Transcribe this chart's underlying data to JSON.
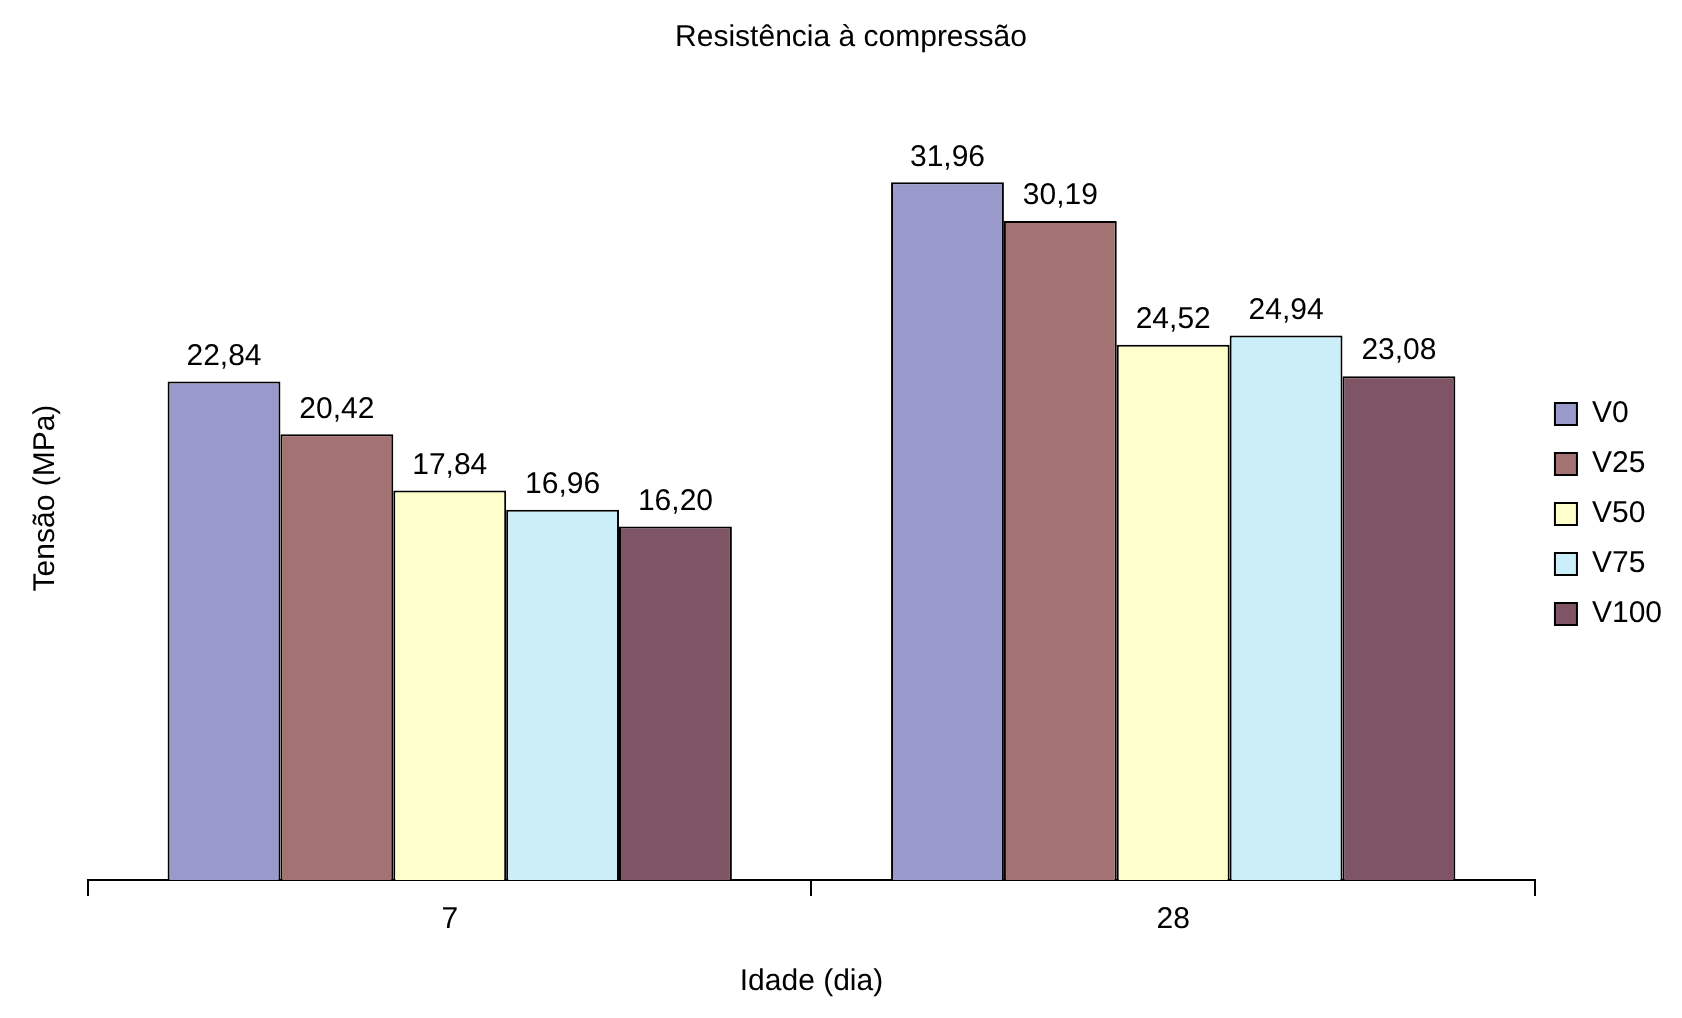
{
  "chart_data": {
    "type": "bar",
    "title": "Resistência à compressão",
    "xlabel": "Idade (dia)",
    "ylabel": "Tensão (MPa)",
    "categories": [
      "7",
      "28"
    ],
    "legend": "right",
    "grid": false,
    "series": [
      {
        "name": "V0",
        "color": "#9999cc",
        "values": [
          22.84,
          31.96
        ],
        "value_labels": [
          "22,84",
          "31,96"
        ]
      },
      {
        "name": "V25",
        "color": "#a37373",
        "values": [
          20.42,
          30.19
        ],
        "value_labels": [
          "20,42",
          "30,19"
        ]
      },
      {
        "name": "V50",
        "color": "#ffffcc",
        "values": [
          17.84,
          24.52
        ],
        "value_labels": [
          "17,84",
          "24,52"
        ]
      },
      {
        "name": "V75",
        "color": "#cceef8",
        "values": [
          16.96,
          24.94
        ],
        "value_labels": [
          "16,96",
          "24,94"
        ]
      },
      {
        "name": "V100",
        "color": "#7f5566",
        "values": [
          16.2,
          23.08
        ],
        "value_labels": [
          "16,20",
          "23,08"
        ]
      }
    ]
  }
}
